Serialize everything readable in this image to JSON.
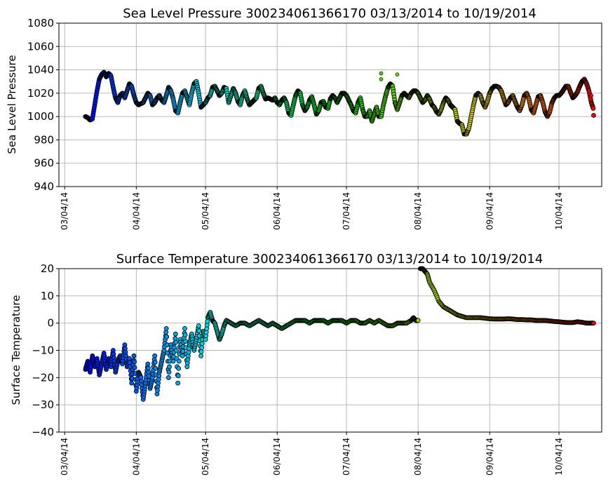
{
  "chart_data": [
    {
      "type": "scatter",
      "title": "Sea Level Pressure 300234061366170  03/13/2014 to 10/19/2014",
      "xlabel": "",
      "ylabel": "Sea Level Pressure",
      "ylim": [
        940,
        1080
      ],
      "yticks": [
        "940",
        "960",
        "980",
        "1000",
        "1020",
        "1040",
        "1060",
        "1080"
      ],
      "xlim_days": [
        -2.5,
        232.5
      ],
      "xticks": [
        "03/04/14",
        "04/04/14",
        "05/04/14",
        "06/04/14",
        "07/04/14",
        "08/04/14",
        "09/04/14",
        "10/04/14"
      ],
      "grid": true,
      "colormap": "gist_rainbow_r (time-colored, blue to red)",
      "series": [
        {
          "name": "pressure",
          "x_day_offset_from_03_04_2014": [
            9,
            10,
            11,
            12,
            13,
            14,
            15,
            16,
            17,
            18,
            19,
            20,
            21,
            22,
            23,
            24,
            25,
            26,
            27,
            28,
            29,
            30,
            31,
            32,
            33,
            34,
            35,
            36,
            37,
            38,
            39,
            40,
            41,
            42,
            43,
            44,
            45,
            46,
            47,
            48,
            49,
            50,
            51,
            52,
            53,
            54,
            55,
            56,
            57,
            58,
            59,
            60,
            61,
            62,
            63,
            64,
            65,
            66,
            67,
            68,
            69,
            70,
            71,
            72,
            73,
            74,
            75,
            76,
            77,
            78,
            79,
            80,
            81,
            82,
            83,
            84,
            85,
            86,
            87,
            88,
            89,
            90,
            91,
            92,
            93,
            94,
            95,
            96,
            97,
            98,
            99,
            100,
            101,
            102,
            103,
            104,
            105,
            106,
            107,
            108,
            109,
            110,
            111,
            112,
            113,
            114,
            115,
            116,
            117,
            118,
            119,
            120,
            121,
            122,
            123,
            124,
            125,
            126,
            127,
            128,
            129,
            130,
            131,
            132,
            133,
            134,
            135,
            136,
            137,
            138,
            139,
            140,
            141,
            142,
            143,
            144,
            145,
            146,
            147,
            148,
            149,
            150,
            151,
            152,
            153,
            154,
            155,
            156,
            157,
            158,
            159,
            160,
            161,
            162,
            163,
            164,
            165,
            166,
            167,
            168,
            169,
            170,
            171,
            172,
            173,
            174,
            175,
            176,
            177,
            178,
            179,
            180,
            181,
            182,
            183,
            184,
            185,
            186,
            187,
            188,
            189,
            190,
            191,
            192,
            193,
            194,
            195,
            196,
            197,
            198,
            199,
            200,
            201,
            202,
            203,
            204,
            205,
            206,
            207,
            208,
            209,
            210,
            211,
            212,
            213,
            214,
            215,
            216,
            217,
            218,
            219,
            220,
            221,
            222,
            223,
            224,
            225,
            226,
            227,
            228,
            229
          ],
          "values": [
            1000,
            999,
            997,
            998,
            1010,
            1022,
            1032,
            1036,
            1038,
            1034,
            1037,
            1035,
            1025,
            1016,
            1012,
            1018,
            1020,
            1016,
            1022,
            1028,
            1026,
            1018,
            1012,
            1010,
            1011,
            1012,
            1016,
            1020,
            1018,
            1010,
            1012,
            1016,
            1018,
            1014,
            1012,
            1018,
            1025,
            1022,
            1015,
            1005,
            1003,
            1012,
            1020,
            1022,
            1016,
            1010,
            1020,
            1028,
            1030,
            1020,
            1008,
            1010,
            1012,
            1016,
            1018,
            1025,
            1026,
            1022,
            1018,
            1020,
            1025,
            1024,
            1012,
            1018,
            1024,
            1020,
            1013,
            1010,
            1018,
            1022,
            1015,
            1010,
            1012,
            1014,
            1016,
            1024,
            1026,
            1020,
            1015,
            1016,
            1015,
            1014,
            1016,
            1012,
            1010,
            1014,
            1016,
            1012,
            1003,
            1001,
            1010,
            1018,
            1022,
            1020,
            1010,
            1005,
            1008,
            1014,
            1017,
            1010,
            1002,
            1005,
            1012,
            1013,
            1008,
            1007,
            1015,
            1018,
            1016,
            1012,
            1016,
            1020,
            1020,
            1018,
            1014,
            1010,
            1005,
            1003,
            1012,
            1016,
            1006,
            1000,
            1000,
            1005,
            996,
            1002,
            1008,
            1000,
            1000,
            1010,
            1018,
            1025,
            1028,
            1026,
            1012,
            1006,
            1012,
            1018,
            1020,
            1018,
            1016,
            1020,
            1022,
            1022,
            1020,
            1016,
            1012,
            1014,
            1018,
            1015,
            1010,
            1008,
            1004,
            1002,
            1006,
            1012,
            1016,
            1014,
            1010,
            1008,
            1006,
            996,
            994,
            993,
            985,
            985,
            990,
            1000,
            1010,
            1018,
            1020,
            1018,
            1012,
            1008,
            1013,
            1020,
            1024,
            1026,
            1026,
            1025,
            1022,
            1016,
            1010,
            1012,
            1016,
            1018,
            1013,
            1008,
            1005,
            1010,
            1018,
            1020,
            1015,
            1006,
            1003,
            1010,
            1017,
            1018,
            1012,
            1004,
            1000,
            1004,
            1012,
            1016,
            1018,
            1018,
            1020,
            1023,
            1026,
            1026,
            1021,
            1016,
            1018,
            1021,
            1026,
            1030,
            1032,
            1028,
            1022,
            1012,
            1006,
            1002,
            1001
          ]
        },
        {
          "name": "pressure outliers",
          "x_day_offset_from_03_04_2014": [
            137,
            137,
            144,
            228
          ],
          "values": [
            1037,
            1032,
            1036,
            1018
          ]
        }
      ]
    },
    {
      "type": "scatter",
      "title": "Surface Temperature 300234061366170  03/13/2014 to 10/19/2014",
      "xlabel": "",
      "ylabel": "Surface Temperature",
      "ylim": [
        -40,
        20
      ],
      "yticks": [
        "−40",
        "−30",
        "−20",
        "−10",
        "0",
        "10",
        "20"
      ],
      "xlim_days": [
        -2.5,
        232.5
      ],
      "xticks": [
        "03/04/14",
        "04/04/14",
        "05/04/14",
        "06/04/14",
        "07/04/14",
        "08/04/14",
        "09/04/14",
        "10/04/14"
      ],
      "grid": true,
      "colormap": "gist_rainbow_r (time-colored, blue to red)",
      "series": [
        {
          "name": "surface temperature",
          "x_day_offset_from_03_04_2014": [
            9,
            10,
            11,
            12,
            13,
            14,
            15,
            16,
            17,
            18,
            19,
            20,
            21,
            22,
            23,
            24,
            25,
            26,
            27,
            28,
            29,
            30,
            31,
            32,
            33,
            34,
            35,
            36,
            37,
            38,
            39,
            40,
            41,
            42,
            43,
            44,
            45,
            46,
            47,
            48,
            49,
            50,
            51,
            52,
            53,
            54,
            55,
            56,
            57,
            58,
            59,
            60,
            61,
            62,
            63,
            64,
            65,
            66,
            67,
            68,
            69,
            70,
            72,
            74,
            76,
            78,
            80,
            82,
            84,
            86,
            88,
            90,
            92,
            94,
            96,
            98,
            100,
            102,
            104,
            106,
            108,
            110,
            112,
            114,
            116,
            118,
            120,
            122,
            124,
            126,
            128,
            130,
            132,
            134,
            136,
            138,
            140,
            142,
            144,
            146,
            148,
            150,
            151,
            152,
            153,
            154,
            155,
            156,
            157,
            158,
            160,
            162,
            164,
            166,
            168,
            170,
            172,
            174,
            176,
            178,
            180,
            182,
            184,
            186,
            188,
            190,
            192,
            194,
            196,
            198,
            200,
            202,
            204,
            206,
            208,
            210,
            212,
            214,
            216,
            218,
            220,
            222,
            224,
            226,
            228,
            229
          ],
          "values": [
            -17,
            -14,
            -18,
            -12,
            -16,
            -13,
            -19,
            -15,
            -11,
            -17,
            -13,
            -16,
            -10,
            -18,
            -14,
            -12,
            -15,
            -8,
            -16,
            -13,
            -22,
            -12,
            -25,
            -18,
            -20,
            -28,
            -22,
            -15,
            -24,
            -20,
            -12,
            -26,
            -18,
            -14,
            -10,
            -2,
            -20,
            -8,
            -14,
            -4,
            -22,
            -6,
            -12,
            -2,
            -16,
            -8,
            -4,
            -10,
            -6,
            -1,
            -12,
            -3,
            -6,
            2,
            4,
            1,
            0,
            -3,
            -6,
            -4,
            -1,
            1,
            0,
            -1,
            0,
            0,
            -1,
            0,
            1,
            0,
            -1,
            0,
            -1,
            -2,
            -1,
            0,
            1,
            1,
            1,
            0,
            1,
            1,
            1,
            0,
            1,
            1,
            1,
            0,
            1,
            1,
            0,
            0,
            1,
            0,
            1,
            0,
            -1,
            -1,
            0,
            0,
            0,
            1,
            2,
            1,
            1,
            20,
            20,
            19,
            18,
            15,
            12,
            8,
            6,
            5,
            4,
            3,
            2.5,
            2,
            2,
            2,
            2,
            1.8,
            1.6,
            1.5,
            1.5,
            1.5,
            1.6,
            1.5,
            1.3,
            1.3,
            1.2,
            1.2,
            1.0,
            1.0,
            1.0,
            0.8,
            0.6,
            0.5,
            0.3,
            0.2,
            0.2,
            0.5,
            0.3,
            0.0,
            0.0,
            0.0
          ]
        }
      ]
    }
  ]
}
